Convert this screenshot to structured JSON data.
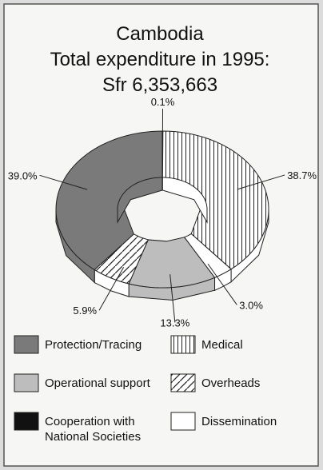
{
  "chart_data": {
    "type": "pie",
    "title_lines": [
      "Cambodia",
      "Total expenditure in 1995:",
      "Sfr 6,353,663"
    ],
    "categories": [
      "Cooperation with National Societies",
      "Medical",
      "Dissemination",
      "Operational support",
      "Overheads",
      "Protection/Tracing"
    ],
    "values": [
      0.1,
      38.7,
      3.0,
      13.3,
      5.9,
      39.0
    ],
    "value_labels": [
      "0.1%",
      "38.7%",
      "3.0%",
      "13.3%",
      "5.9%",
      "39.0%"
    ],
    "colors": [
      "#111111",
      "#ffffff",
      "#ffffff",
      "#bdbdbd",
      "#ffffff",
      "#7a7a7a"
    ],
    "patterns": [
      "solid",
      "vertical-hatch",
      "solid",
      "solid",
      "diagonal-hatch",
      "solid"
    ],
    "donut": true
  }
}
